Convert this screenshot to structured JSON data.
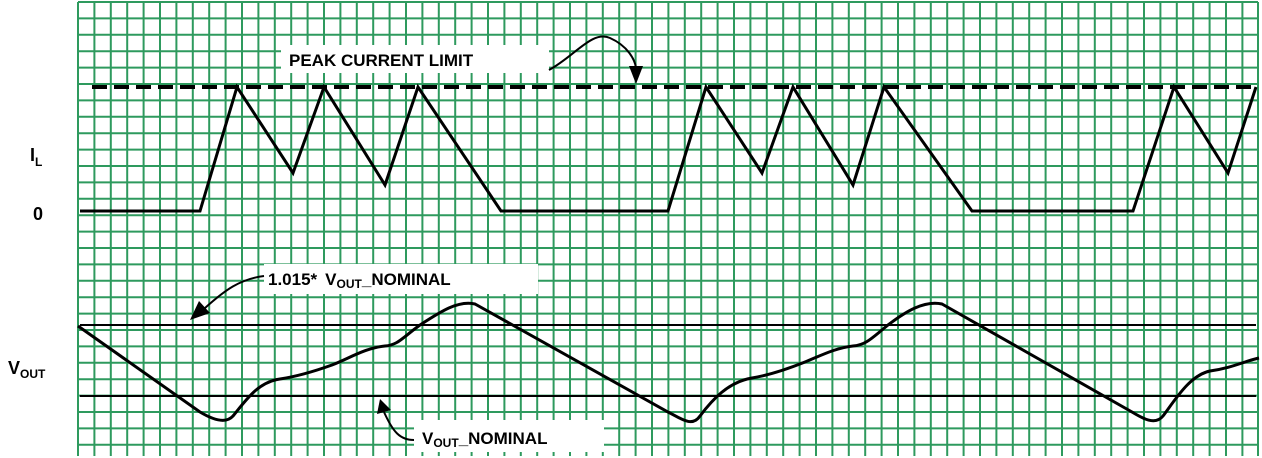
{
  "labels": {
    "peak_current_limit": "PEAK CURRENT LIMIT",
    "il_main": "I",
    "il_sub": "L",
    "zero": "0",
    "vout_main": "V",
    "vout_sub": "OUT",
    "upper_threshold_prefix": "1.015*",
    "upper_threshold_v": "V",
    "upper_threshold_sub": "OUT",
    "upper_threshold_suffix": "_NOMINAL",
    "nominal_v": "V",
    "nominal_sub": "OUT",
    "nominal_suffix": "_NOMINAL"
  },
  "colors": {
    "grid": "#2e9a5e",
    "trace": "#000000"
  }
}
